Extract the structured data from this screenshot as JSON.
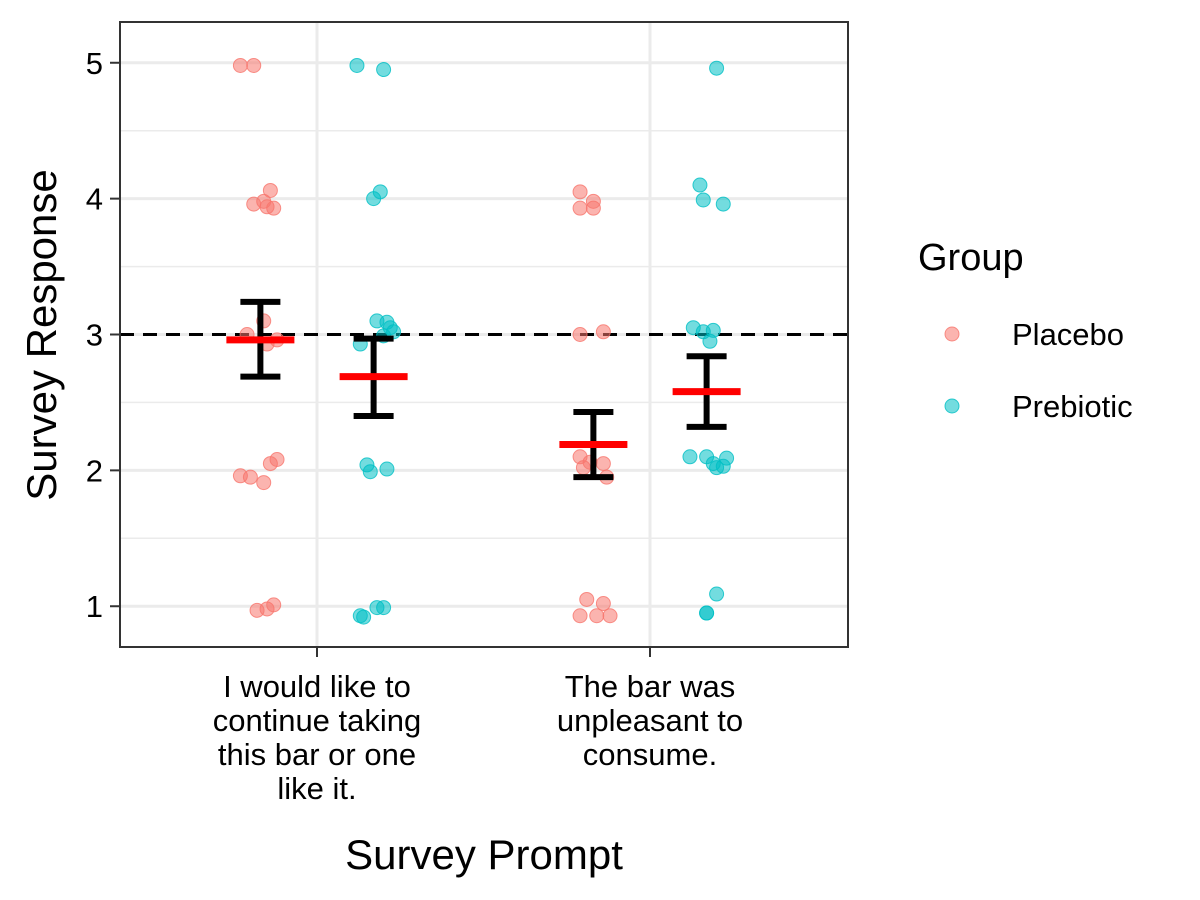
{
  "chart_data": {
    "type": "scatter",
    "xlabel": "Survey Prompt",
    "ylabel": "Survey Response",
    "ylim": [
      0.7,
      5.3
    ],
    "y_ticks": [
      "1",
      "2",
      "3",
      "4",
      "5"
    ],
    "reference_line_y": 3,
    "categories": [
      {
        "lines": [
          "I would like to",
          "continue taking",
          "this bar or one",
          "like it."
        ]
      },
      {
        "lines": [
          "The bar was",
          "unpleasant to",
          "consume."
        ]
      }
    ],
    "legend": {
      "title": "Group",
      "placement": "right"
    },
    "series": [
      {
        "name": "Placebo",
        "color": "#F8766D",
        "points": [
          {
            "c": 0,
            "dx": -0.23,
            "y": 4.98
          },
          {
            "c": 0,
            "dx": -0.19,
            "y": 4.98
          },
          {
            "c": 0,
            "dx": -0.19,
            "y": 3.96
          },
          {
            "c": 0,
            "dx": -0.16,
            "y": 3.98
          },
          {
            "c": 0,
            "dx": -0.15,
            "y": 3.94
          },
          {
            "c": 0,
            "dx": -0.13,
            "y": 3.93
          },
          {
            "c": 0,
            "dx": -0.14,
            "y": 4.06
          },
          {
            "c": 0,
            "dx": -0.16,
            "y": 3.1
          },
          {
            "c": 0,
            "dx": -0.21,
            "y": 3.0
          },
          {
            "c": 0,
            "dx": -0.15,
            "y": 2.93
          },
          {
            "c": 0,
            "dx": -0.12,
            "y": 2.96
          },
          {
            "c": 0,
            "dx": -0.23,
            "y": 1.96
          },
          {
            "c": 0,
            "dx": -0.2,
            "y": 1.95
          },
          {
            "c": 0,
            "dx": -0.16,
            "y": 1.91
          },
          {
            "c": 0,
            "dx": -0.14,
            "y": 2.05
          },
          {
            "c": 0,
            "dx": -0.12,
            "y": 2.08
          },
          {
            "c": 0,
            "dx": -0.18,
            "y": 0.97
          },
          {
            "c": 0,
            "dx": -0.15,
            "y": 0.98
          },
          {
            "c": 0,
            "dx": -0.13,
            "y": 1.01
          },
          {
            "c": 1,
            "dx": -0.21,
            "y": 4.05
          },
          {
            "c": 1,
            "dx": -0.17,
            "y": 3.98
          },
          {
            "c": 1,
            "dx": -0.21,
            "y": 3.93
          },
          {
            "c": 1,
            "dx": -0.17,
            "y": 3.93
          },
          {
            "c": 1,
            "dx": -0.21,
            "y": 3.0
          },
          {
            "c": 1,
            "dx": -0.14,
            "y": 3.02
          },
          {
            "c": 1,
            "dx": -0.21,
            "y": 2.1
          },
          {
            "c": 1,
            "dx": -0.18,
            "y": 2.06
          },
          {
            "c": 1,
            "dx": -0.2,
            "y": 2.02
          },
          {
            "c": 1,
            "dx": -0.14,
            "y": 2.05
          },
          {
            "c": 1,
            "dx": -0.13,
            "y": 1.95
          },
          {
            "c": 1,
            "dx": -0.19,
            "y": 1.05
          },
          {
            "c": 1,
            "dx": -0.14,
            "y": 1.02
          },
          {
            "c": 1,
            "dx": -0.21,
            "y": 0.93
          },
          {
            "c": 1,
            "dx": -0.16,
            "y": 0.93
          },
          {
            "c": 1,
            "dx": -0.12,
            "y": 0.93
          }
        ],
        "mean": [
          2.96,
          2.19
        ],
        "error_low": [
          2.69,
          1.95
        ],
        "error_high": [
          3.24,
          2.43
        ]
      },
      {
        "name": "Prebiotic",
        "color": "#00BFC4",
        "points": [
          {
            "c": 0,
            "dx": 0.12,
            "y": 4.98
          },
          {
            "c": 0,
            "dx": 0.2,
            "y": 4.95
          },
          {
            "c": 0,
            "dx": 0.17,
            "y": 4.0
          },
          {
            "c": 0,
            "dx": 0.19,
            "y": 4.05
          },
          {
            "c": 0,
            "dx": 0.13,
            "y": 2.93
          },
          {
            "c": 0,
            "dx": 0.18,
            "y": 3.1
          },
          {
            "c": 0,
            "dx": 0.21,
            "y": 3.09
          },
          {
            "c": 0,
            "dx": 0.22,
            "y": 3.05
          },
          {
            "c": 0,
            "dx": 0.23,
            "y": 3.02
          },
          {
            "c": 0,
            "dx": 0.2,
            "y": 2.99
          },
          {
            "c": 0,
            "dx": 0.15,
            "y": 2.04
          },
          {
            "c": 0,
            "dx": 0.16,
            "y": 1.99
          },
          {
            "c": 0,
            "dx": 0.21,
            "y": 2.01
          },
          {
            "c": 0,
            "dx": 0.13,
            "y": 0.93
          },
          {
            "c": 0,
            "dx": 0.14,
            "y": 0.92
          },
          {
            "c": 0,
            "dx": 0.18,
            "y": 0.99
          },
          {
            "c": 0,
            "dx": 0.2,
            "y": 0.99
          },
          {
            "c": 1,
            "dx": 0.2,
            "y": 4.96
          },
          {
            "c": 1,
            "dx": 0.15,
            "y": 4.1
          },
          {
            "c": 1,
            "dx": 0.16,
            "y": 3.99
          },
          {
            "c": 1,
            "dx": 0.22,
            "y": 3.96
          },
          {
            "c": 1,
            "dx": 0.13,
            "y": 3.05
          },
          {
            "c": 1,
            "dx": 0.16,
            "y": 3.02
          },
          {
            "c": 1,
            "dx": 0.19,
            "y": 3.03
          },
          {
            "c": 1,
            "dx": 0.18,
            "y": 2.95
          },
          {
            "c": 1,
            "dx": 0.12,
            "y": 2.1
          },
          {
            "c": 1,
            "dx": 0.17,
            "y": 2.1
          },
          {
            "c": 1,
            "dx": 0.19,
            "y": 2.05
          },
          {
            "c": 1,
            "dx": 0.2,
            "y": 2.02
          },
          {
            "c": 1,
            "dx": 0.22,
            "y": 2.03
          },
          {
            "c": 1,
            "dx": 0.23,
            "y": 2.09
          },
          {
            "c": 1,
            "dx": 0.2,
            "y": 1.09
          },
          {
            "c": 1,
            "dx": 0.17,
            "y": 0.95
          },
          {
            "c": 1,
            "dx": 0.17,
            "y": 0.95
          }
        ],
        "mean": [
          2.69,
          2.58
        ],
        "error_low": [
          2.4,
          2.32
        ],
        "error_high": [
          2.97,
          2.84
        ]
      }
    ]
  }
}
